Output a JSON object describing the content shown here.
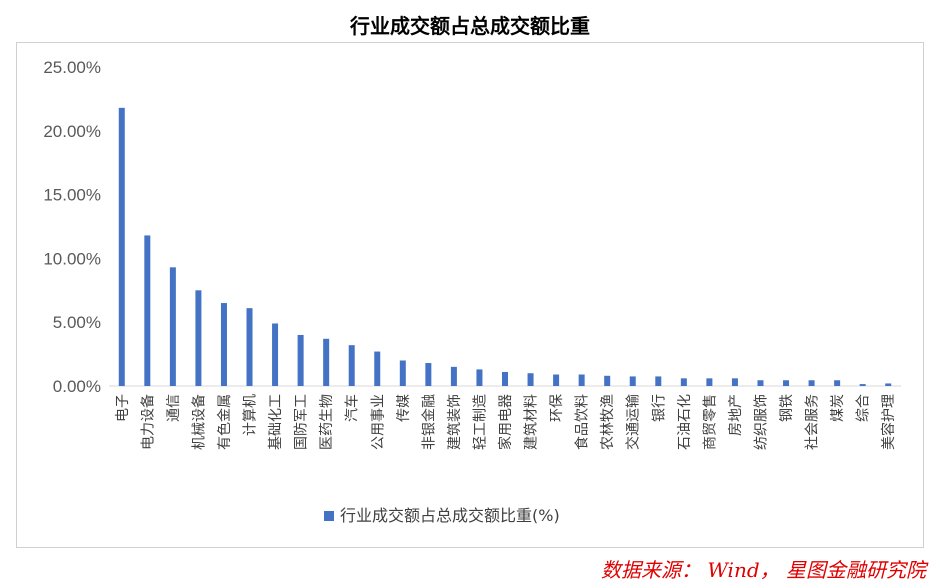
{
  "title": "行业成交额占总成交额比重",
  "source": "数据来源： Wind， 星图金融研究院",
  "colors": {
    "bar": "#4472C4",
    "source": "#e00000",
    "axis": "#d9d9d9"
  },
  "chart_data": {
    "type": "bar",
    "title": "行业成交额占总成交额比重",
    "ylim": [
      0,
      25
    ],
    "yticks": [
      "0.00%",
      "5.00%",
      "10.00%",
      "15.00%",
      "20.00%",
      "25.00%"
    ],
    "ytick_values": [
      0,
      5,
      10,
      15,
      20,
      25
    ],
    "grid": false,
    "legend_position": "bottom",
    "categories": [
      "电子",
      "电力设备",
      "通信",
      "机械设备",
      "有色金属",
      "计算机",
      "基础化工",
      "国防军工",
      "医药生物",
      "汽车",
      "公用事业",
      "传媒",
      "非银金融",
      "建筑装饰",
      "轻工制造",
      "家用电器",
      "建筑材料",
      "环保",
      "食品饮料",
      "农林牧渔",
      "交通运输",
      "银行",
      "石油石化",
      "商贸零售",
      "房地产",
      "纺织服饰",
      "钢铁",
      "社会服务",
      "煤炭",
      "综合",
      "美容护理"
    ],
    "series": [
      {
        "name": "行业成交额占总成交额比重(%)",
        "values": [
          21.8,
          11.8,
          9.3,
          7.5,
          6.5,
          6.1,
          4.9,
          4.0,
          3.7,
          3.2,
          2.7,
          2.0,
          1.8,
          1.5,
          1.3,
          1.1,
          1.0,
          0.9,
          0.9,
          0.8,
          0.75,
          0.75,
          0.6,
          0.6,
          0.6,
          0.45,
          0.45,
          0.45,
          0.45,
          0.15,
          0.2
        ]
      }
    ]
  }
}
